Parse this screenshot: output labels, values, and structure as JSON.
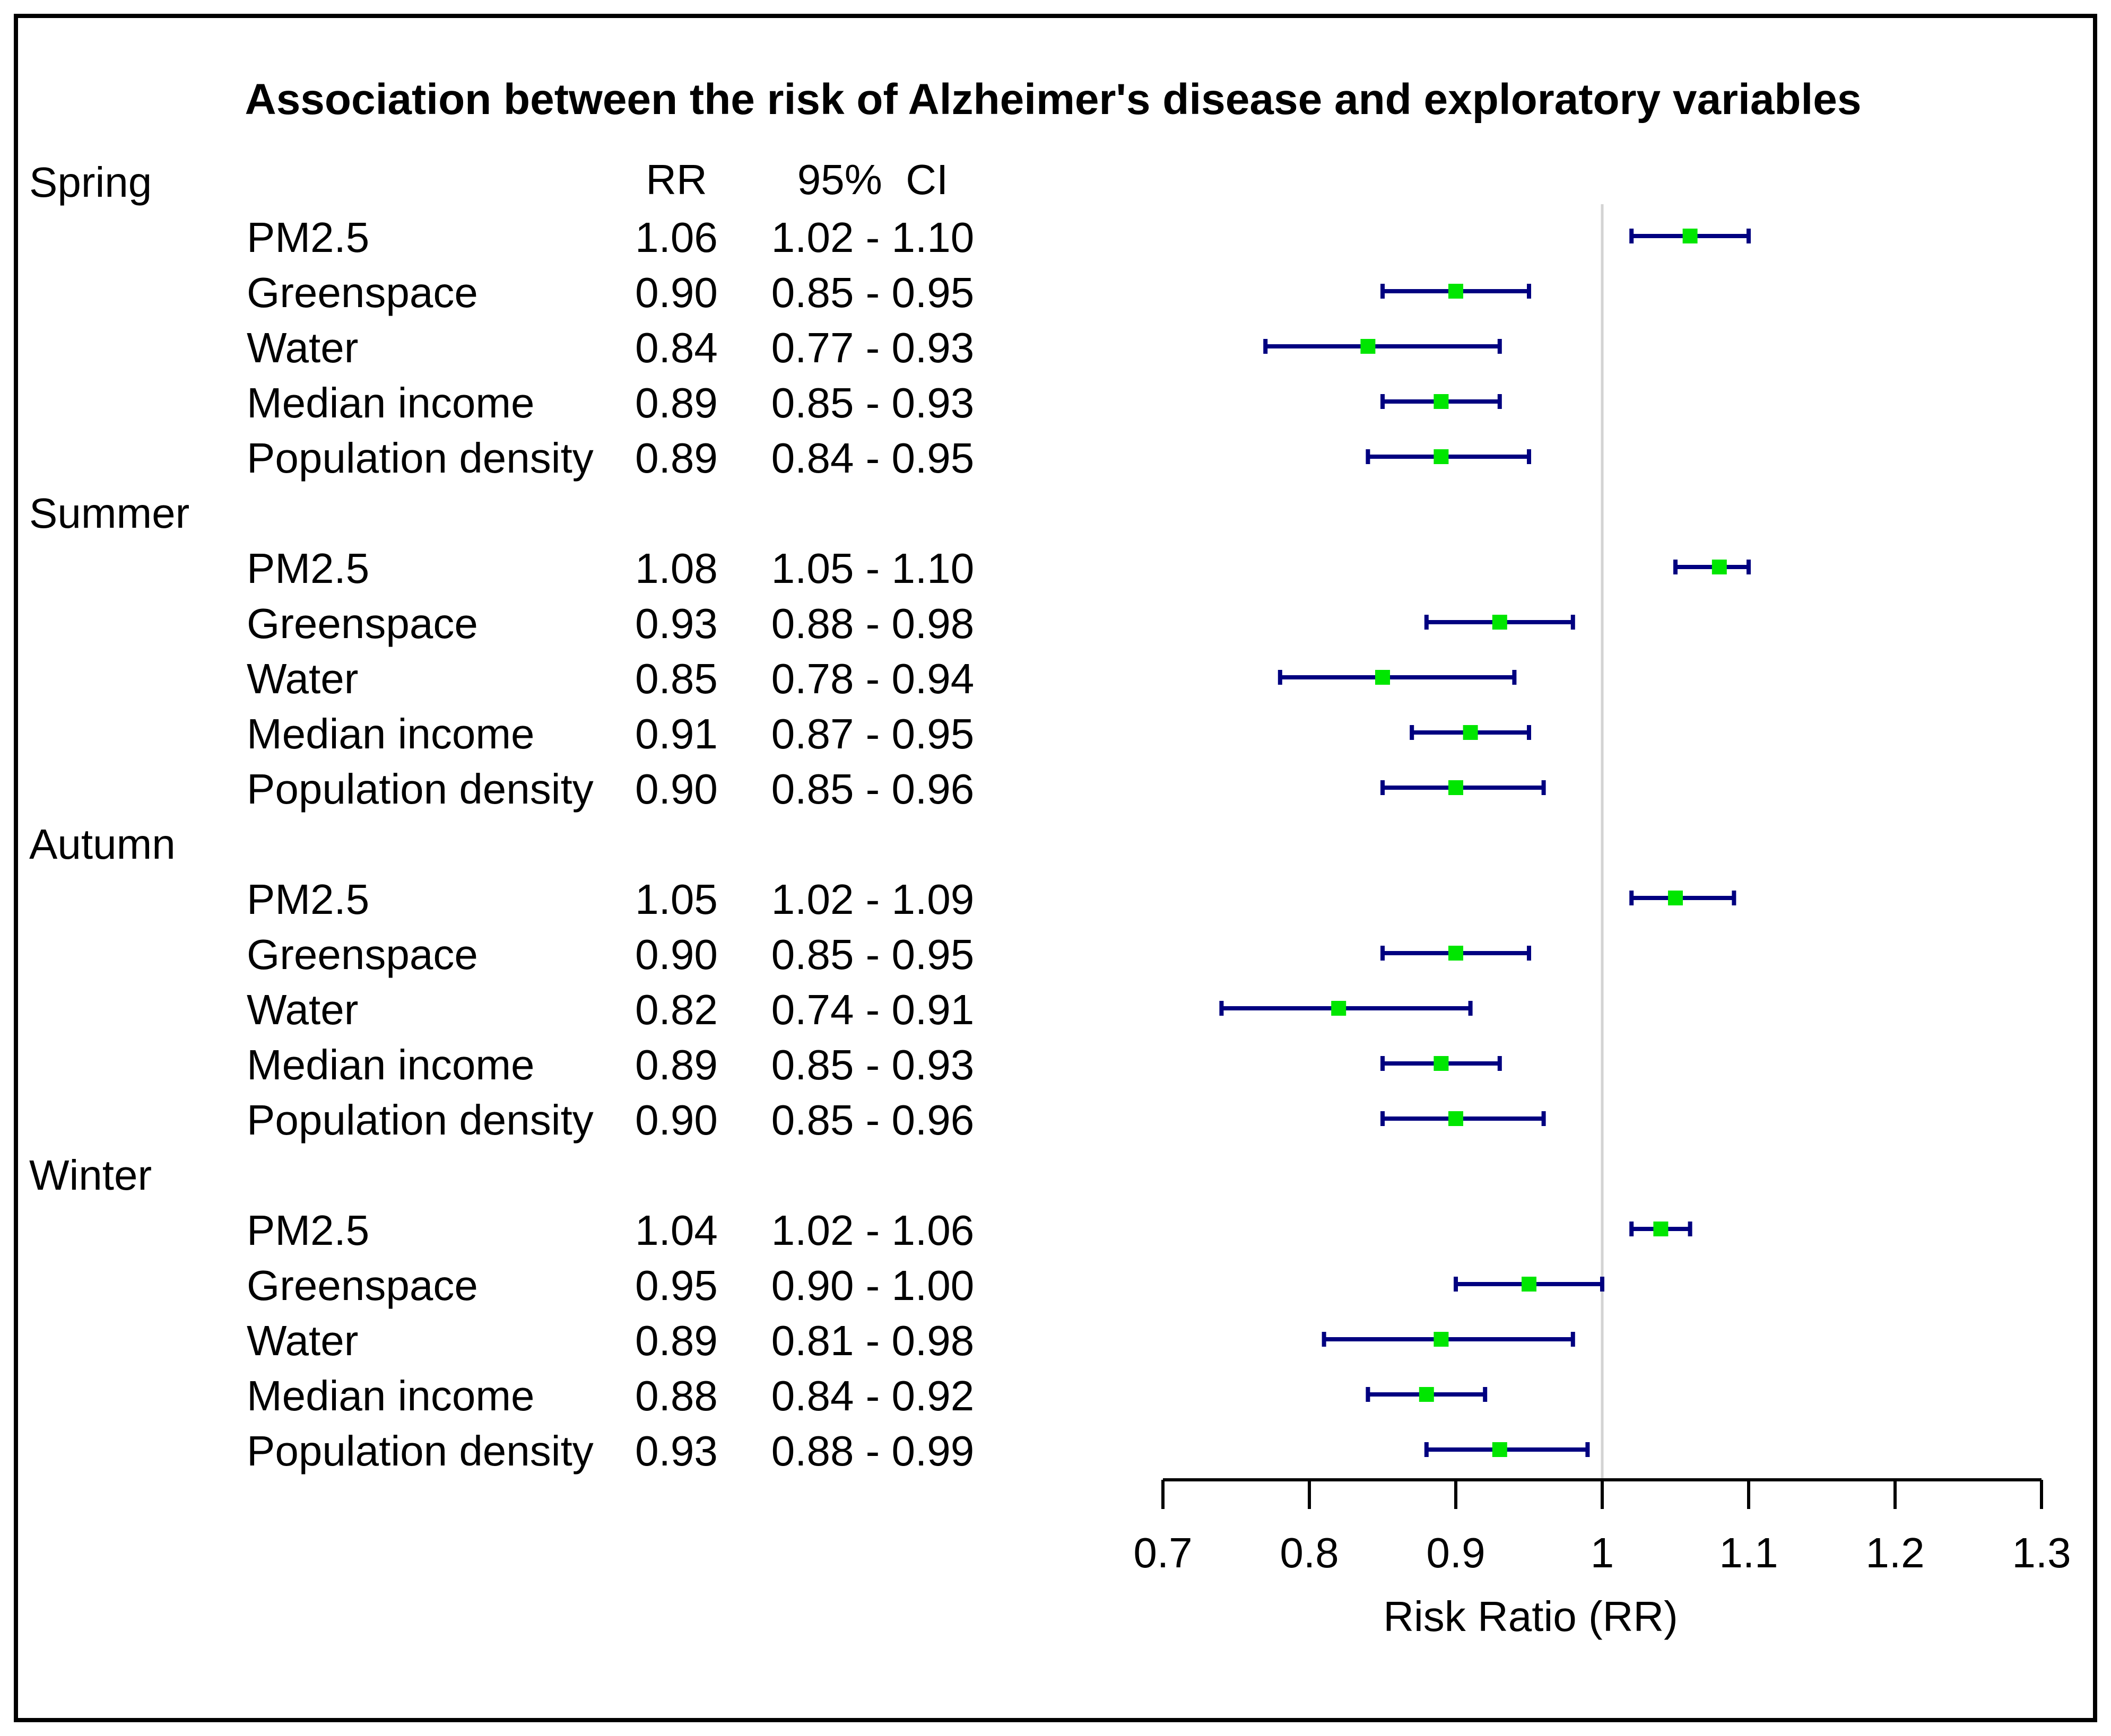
{
  "chart_data": {
    "type": "forest",
    "title": "Association between the risk of Alzheimer's disease and exploratory variables",
    "column_headers": {
      "rr": "RR",
      "ci": "95%  CI"
    },
    "xlabel": "Risk Ratio (RR)",
    "xlim": [
      0.7,
      1.3
    ],
    "x_ticks": [
      0.7,
      0.8,
      0.9,
      1.0,
      1.1,
      1.2,
      1.3
    ],
    "x_tick_labels": [
      "0.7",
      "0.8",
      "0.9",
      "1",
      "1.1",
      "1.2",
      "1.3"
    ],
    "reference_line": 1.0,
    "colors": {
      "point": "#00e600",
      "interval": "#000080",
      "reference": "#d3d3d3"
    },
    "groups": [
      {
        "name": "Spring",
        "rows": [
          {
            "label": "PM2.5",
            "rr": 1.06,
            "lower": 1.02,
            "upper": 1.1,
            "rr_text": "1.06",
            "ci_text": "1.02 - 1.10"
          },
          {
            "label": "Greenspace",
            "rr": 0.9,
            "lower": 0.85,
            "upper": 0.95,
            "rr_text": "0.90",
            "ci_text": "0.85 - 0.95"
          },
          {
            "label": "Water",
            "rr": 0.84,
            "lower": 0.77,
            "upper": 0.93,
            "rr_text": "0.84",
            "ci_text": "0.77 - 0.93"
          },
          {
            "label": "Median income",
            "rr": 0.89,
            "lower": 0.85,
            "upper": 0.93,
            "rr_text": "0.89",
            "ci_text": "0.85 - 0.93"
          },
          {
            "label": "Population density",
            "rr": 0.89,
            "lower": 0.84,
            "upper": 0.95,
            "rr_text": "0.89",
            "ci_text": "0.84 - 0.95"
          }
        ]
      },
      {
        "name": "Summer",
        "rows": [
          {
            "label": "PM2.5",
            "rr": 1.08,
            "lower": 1.05,
            "upper": 1.1,
            "rr_text": "1.08",
            "ci_text": "1.05 - 1.10"
          },
          {
            "label": "Greenspace",
            "rr": 0.93,
            "lower": 0.88,
            "upper": 0.98,
            "rr_text": "0.93",
            "ci_text": "0.88 - 0.98"
          },
          {
            "label": "Water",
            "rr": 0.85,
            "lower": 0.78,
            "upper": 0.94,
            "rr_text": "0.85",
            "ci_text": "0.78 - 0.94"
          },
          {
            "label": "Median income",
            "rr": 0.91,
            "lower": 0.87,
            "upper": 0.95,
            "rr_text": "0.91",
            "ci_text": "0.87 - 0.95"
          },
          {
            "label": "Population density",
            "rr": 0.9,
            "lower": 0.85,
            "upper": 0.96,
            "rr_text": "0.90",
            "ci_text": "0.85 - 0.96"
          }
        ]
      },
      {
        "name": "Autumn",
        "rows": [
          {
            "label": "PM2.5",
            "rr": 1.05,
            "lower": 1.02,
            "upper": 1.09,
            "rr_text": "1.05",
            "ci_text": "1.02 - 1.09"
          },
          {
            "label": "Greenspace",
            "rr": 0.9,
            "lower": 0.85,
            "upper": 0.95,
            "rr_text": "0.90",
            "ci_text": "0.85 - 0.95"
          },
          {
            "label": "Water",
            "rr": 0.82,
            "lower": 0.74,
            "upper": 0.91,
            "rr_text": "0.82",
            "ci_text": "0.74 - 0.91"
          },
          {
            "label": "Median income",
            "rr": 0.89,
            "lower": 0.85,
            "upper": 0.93,
            "rr_text": "0.89",
            "ci_text": "0.85 - 0.93"
          },
          {
            "label": "Population density",
            "rr": 0.9,
            "lower": 0.85,
            "upper": 0.96,
            "rr_text": "0.90",
            "ci_text": "0.85 - 0.96"
          }
        ]
      },
      {
        "name": "Winter",
        "rows": [
          {
            "label": "PM2.5",
            "rr": 1.04,
            "lower": 1.02,
            "upper": 1.06,
            "rr_text": "1.04",
            "ci_text": "1.02 - 1.06"
          },
          {
            "label": "Greenspace",
            "rr": 0.95,
            "lower": 0.9,
            "upper": 1.0,
            "rr_text": "0.95",
            "ci_text": "0.90 - 1.00"
          },
          {
            "label": "Water",
            "rr": 0.89,
            "lower": 0.81,
            "upper": 0.98,
            "rr_text": "0.89",
            "ci_text": "0.81 - 0.98"
          },
          {
            "label": "Median income",
            "rr": 0.88,
            "lower": 0.84,
            "upper": 0.92,
            "rr_text": "0.88",
            "ci_text": "0.84 - 0.92"
          },
          {
            "label": "Population density",
            "rr": 0.93,
            "lower": 0.88,
            "upper": 0.99,
            "rr_text": "0.93",
            "ci_text": "0.88 - 0.99"
          }
        ]
      }
    ]
  }
}
